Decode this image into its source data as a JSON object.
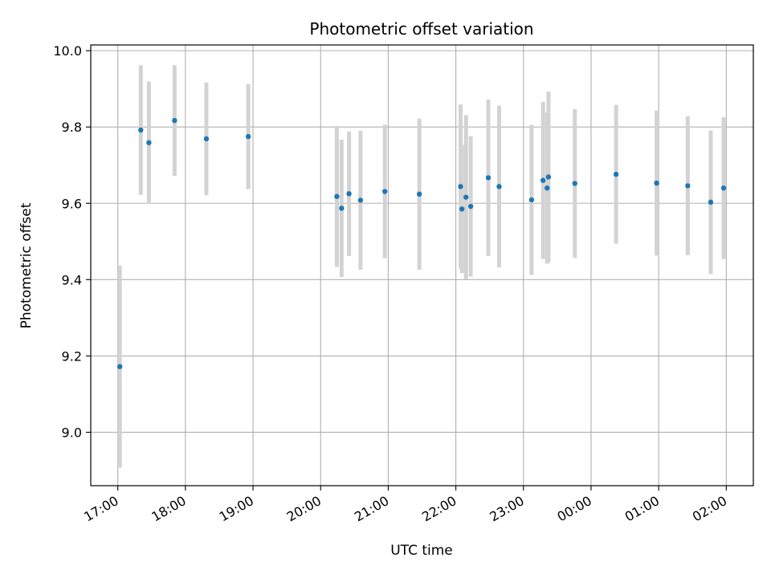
{
  "chart_data": {
    "type": "scatter",
    "title": "Photometric offset variation",
    "xlabel": "UTC time",
    "ylabel": "Photometric offset",
    "x_is_time": true,
    "x_unit": "hours since 17:00 UTC",
    "xlim": [
      -0.4,
      9.4
    ],
    "ylim": [
      8.86,
      10.015
    ],
    "grid": true,
    "x_ticks": [
      {
        "value": 0,
        "label": "17:00"
      },
      {
        "value": 1,
        "label": "18:00"
      },
      {
        "value": 2,
        "label": "19:00"
      },
      {
        "value": 3,
        "label": "20:00"
      },
      {
        "value": 4,
        "label": "21:00"
      },
      {
        "value": 5,
        "label": "22:00"
      },
      {
        "value": 6,
        "label": "23:00"
      },
      {
        "value": 7,
        "label": "00:00"
      },
      {
        "value": 8,
        "label": "01:00"
      },
      {
        "value": 9,
        "label": "02:00"
      }
    ],
    "y_ticks": [
      {
        "value": 9.0,
        "label": "9.0"
      },
      {
        "value": 9.2,
        "label": "9.2"
      },
      {
        "value": 9.4,
        "label": "9.4"
      },
      {
        "value": 9.6,
        "label": "9.6"
      },
      {
        "value": 9.8,
        "label": "9.8"
      },
      {
        "value": 10.0,
        "label": "10.0"
      }
    ],
    "colors": {
      "point": "#1f77b4",
      "errorbar": "#d3d3d3",
      "grid": "#b0b0b0"
    },
    "series": [
      {
        "points": [
          {
            "x": 0.03,
            "y": 9.172,
            "err": 0.265
          },
          {
            "x": 0.34,
            "y": 9.792,
            "err": 0.17
          },
          {
            "x": 0.46,
            "y": 9.759,
            "err": 0.16
          },
          {
            "x": 0.84,
            "y": 9.817,
            "err": 0.145
          },
          {
            "x": 1.31,
            "y": 9.769,
            "err": 0.148
          },
          {
            "x": 1.93,
            "y": 9.775,
            "err": 0.138
          },
          {
            "x": 3.24,
            "y": 9.618,
            "err": 0.185
          },
          {
            "x": 3.31,
            "y": 9.587,
            "err": 0.18
          },
          {
            "x": 3.42,
            "y": 9.625,
            "err": 0.163
          },
          {
            "x": 3.59,
            "y": 9.608,
            "err": 0.182
          },
          {
            "x": 3.95,
            "y": 9.631,
            "err": 0.175
          },
          {
            "x": 4.46,
            "y": 9.624,
            "err": 0.198
          },
          {
            "x": 5.07,
            "y": 9.644,
            "err": 0.215
          },
          {
            "x": 5.09,
            "y": 9.585,
            "err": 0.168
          },
          {
            "x": 5.15,
            "y": 9.616,
            "err": 0.215
          },
          {
            "x": 5.22,
            "y": 9.592,
            "err": 0.184
          },
          {
            "x": 5.48,
            "y": 9.667,
            "err": 0.205
          },
          {
            "x": 5.64,
            "y": 9.644,
            "err": 0.212
          },
          {
            "x": 6.12,
            "y": 9.609,
            "err": 0.197
          },
          {
            "x": 6.29,
            "y": 9.66,
            "err": 0.206
          },
          {
            "x": 6.35,
            "y": 9.64,
            "err": 0.198
          },
          {
            "x": 6.37,
            "y": 9.669,
            "err": 0.224
          },
          {
            "x": 6.76,
            "y": 9.652,
            "err": 0.195
          },
          {
            "x": 7.37,
            "y": 9.676,
            "err": 0.182
          },
          {
            "x": 7.97,
            "y": 9.653,
            "err": 0.19
          },
          {
            "x": 8.43,
            "y": 9.646,
            "err": 0.182
          },
          {
            "x": 8.77,
            "y": 9.603,
            "err": 0.188
          },
          {
            "x": 8.96,
            "y": 9.64,
            "err": 0.186
          }
        ]
      }
    ]
  }
}
